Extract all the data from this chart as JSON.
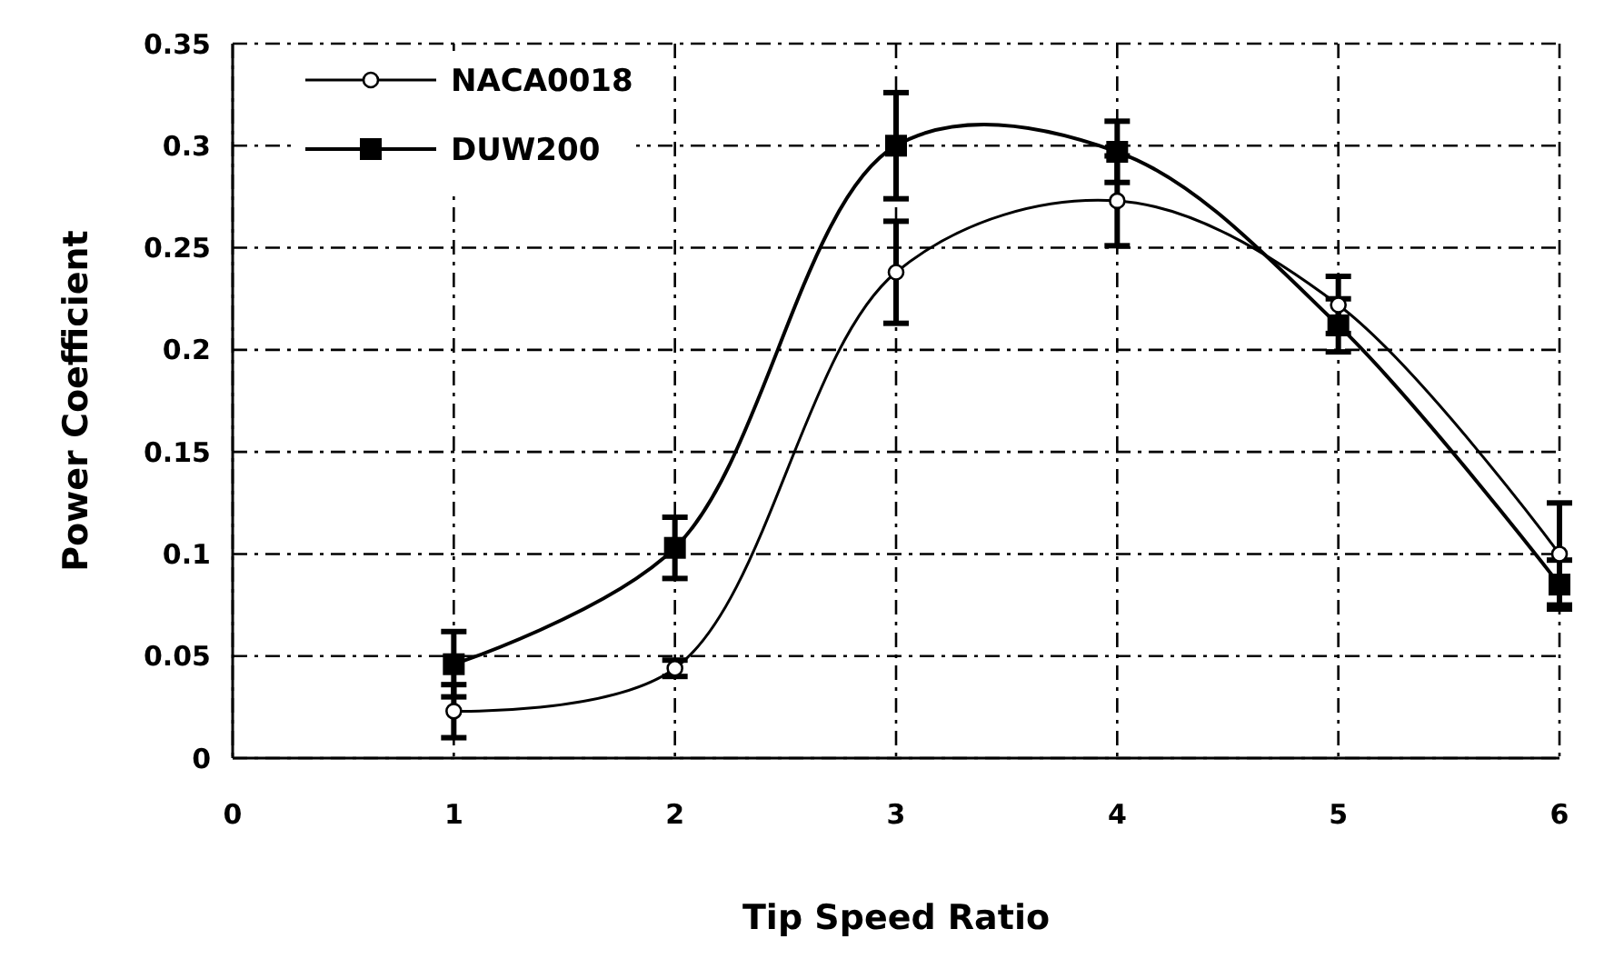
{
  "chart_data": {
    "type": "line",
    "xlabel": "Tip Speed Ratio",
    "ylabel": "Power Coefficient",
    "x": [
      1,
      2,
      3,
      4,
      5,
      6
    ],
    "series": [
      {
        "name": "NACA0018",
        "color": "#000000",
        "marker": "circle",
        "values": [
          0.023,
          0.044,
          0.238,
          0.273,
          0.222,
          0.1
        ],
        "errors": [
          0.013,
          0.004,
          0.025,
          0.022,
          0.014,
          0.025
        ]
      },
      {
        "name": "DUW200",
        "color": "#000000",
        "marker": "square",
        "values": [
          0.046,
          0.103,
          0.3,
          0.297,
          0.212,
          0.085
        ],
        "errors": [
          0.016,
          0.015,
          0.026,
          0.015,
          0.013,
          0.012
        ]
      }
    ],
    "xlim": [
      0,
      6
    ],
    "xticks": [
      0,
      1,
      2,
      3,
      4,
      5,
      6
    ],
    "ylim": [
      0,
      0.35
    ],
    "yticks": [
      0,
      0.05,
      0.1,
      0.15,
      0.2,
      0.25,
      0.3,
      0.35
    ],
    "grid": true,
    "legend": "top left"
  }
}
